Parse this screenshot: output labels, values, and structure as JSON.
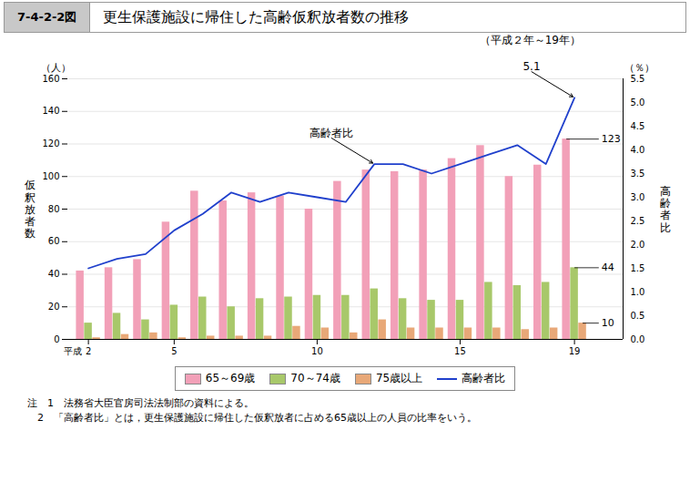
{
  "chart_data": {
    "type": "bar",
    "figure_number": "7-4-2-2図",
    "title": "更生保護施設に帰住した高齢仮釈放者数の推移",
    "subtitle": "（平成２年～19年）",
    "xlabel": "平成",
    "ylabel": "仮\n釈\n放\n者\n数",
    "y2label": "高\n齢\n者\n比",
    "yunit": "（人）",
    "y2unit": "（％）",
    "categories": [
      "2",
      null,
      null,
      "5",
      null,
      null,
      null,
      null,
      "10",
      null,
      null,
      null,
      null,
      "15",
      null,
      null,
      null,
      "19"
    ],
    "series": [
      {
        "name": "65～69歳",
        "type": "bar",
        "color": "#f2a0b8",
        "values": [
          42,
          44,
          49,
          72,
          91,
          85,
          90,
          88,
          80,
          97,
          104,
          103,
          104,
          111,
          119,
          100,
          107,
          123
        ]
      },
      {
        "name": "70～74歳",
        "type": "bar",
        "color": "#a8c86a",
        "values": [
          10,
          16,
          12,
          21,
          26,
          20,
          25,
          26,
          27,
          27,
          31,
          25,
          24,
          24,
          35,
          33,
          35,
          44
        ]
      },
      {
        "name": "75歳以上",
        "type": "bar",
        "color": "#e8a878",
        "values": [
          1,
          3,
          4,
          1,
          2,
          2,
          2,
          8,
          7,
          4,
          12,
          7,
          7,
          7,
          7,
          6,
          7,
          10
        ]
      },
      {
        "name": "高齢者比",
        "type": "line",
        "axis": "y2",
        "color": "#2040cc",
        "values": [
          1.5,
          1.7,
          1.8,
          2.3,
          2.65,
          3.1,
          2.9,
          3.1,
          3.0,
          2.9,
          3.7,
          3.7,
          3.5,
          3.7,
          3.9,
          4.1,
          3.7,
          5.1
        ]
      }
    ],
    "ylim": [
      0,
      160
    ],
    "yticks": [
      0,
      20,
      40,
      60,
      80,
      100,
      120,
      140,
      160
    ],
    "y2lim": [
      0,
      5.5
    ],
    "y2ticks": [
      {
        "value": 0,
        "label": "0.0"
      },
      0.5,
      {
        "value": 1,
        "label": "1.0"
      },
      1.5,
      {
        "value": 2,
        "label": "2.0"
      },
      2.5,
      {
        "value": 3,
        "label": "3.0"
      },
      3.5,
      {
        "value": 4,
        "label": "4.0"
      },
      4.5,
      {
        "value": 5,
        "label": "5.0"
      },
      5.5
    ],
    "grid": true,
    "legend": "bottom",
    "annotations": [
      {
        "text": "高齢者比",
        "series": "高齢者比",
        "index": 10
      },
      {
        "text": "5.1",
        "series": "高齢者比",
        "index": 17
      },
      {
        "text": "123",
        "series": "65～69歳",
        "index": 17
      },
      {
        "text": "44",
        "series": "70～74歳",
        "index": 17
      },
      {
        "text": "10",
        "series": "75歳以上",
        "index": 17
      }
    ],
    "notes": [
      "注　1　法務省大臣官房司法法制部の資料による。",
      "　2　「高齢者比」とは，更生保護施設に帰住した仮釈放者に占める65歳以上の人員の比率をいう。"
    ]
  }
}
